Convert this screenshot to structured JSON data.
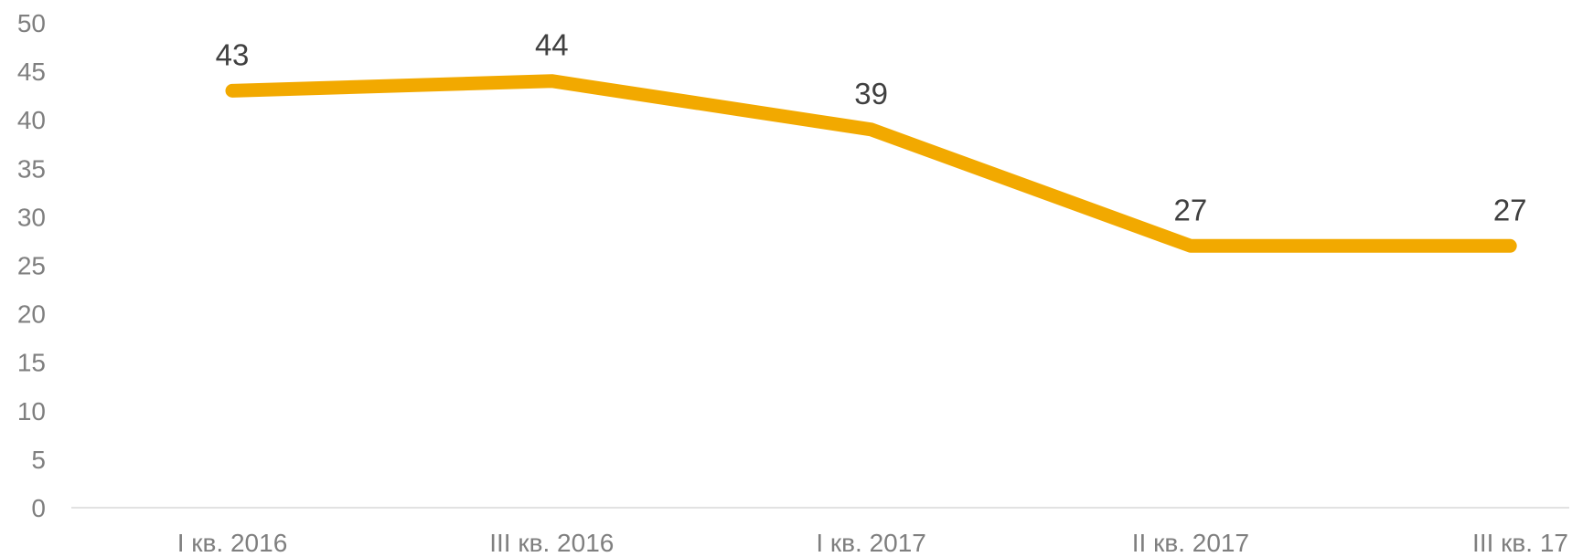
{
  "chart_data": {
    "type": "line",
    "title": "",
    "xlabel": "",
    "ylabel": "",
    "categories": [
      "I кв. 2016",
      "III кв. 2016",
      "I кв. 2017",
      "II кв. 2017",
      "III кв. 17"
    ],
    "series": [
      {
        "values": [
          43,
          44,
          39,
          27,
          27
        ],
        "color": "#F2A900",
        "data_labels": [
          "43",
          "44",
          "39",
          "27",
          "27"
        ]
      }
    ],
    "ylim": [
      0,
      50
    ],
    "yticks": [
      "0",
      "5",
      "10",
      "15",
      "20",
      "25",
      "30",
      "35",
      "40",
      "45",
      "50"
    ],
    "grid": false,
    "legend": "none"
  }
}
